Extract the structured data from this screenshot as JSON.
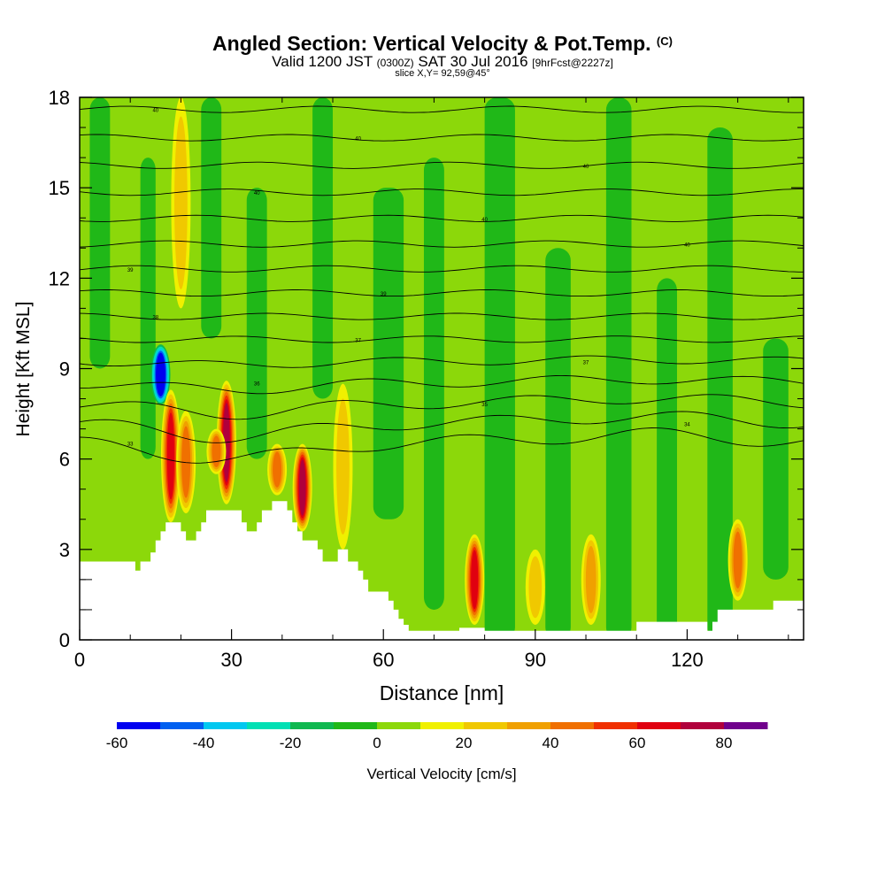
{
  "header": {
    "title_main": "Angled Section: Vertical Velocity & Pot.Temp.",
    "title_unit": "(C)",
    "valid_prefix": "Valid 1200 JST",
    "valid_utc": "(0300Z)",
    "valid_date": "SAT 30 Jul 2016",
    "valid_fcst": "[9hrFcst@2227z]",
    "slice": "slice X,Y= 92,59@45°"
  },
  "chart_data": {
    "type": "heatmap",
    "xlabel": "Distance [nm]",
    "ylabel": "Height [Kft MSL]",
    "xlim": [
      0,
      143
    ],
    "ylim": [
      0,
      18
    ],
    "xticks": [
      0,
      30,
      60,
      90,
      120
    ],
    "yticks": [
      0,
      3,
      6,
      9,
      12,
      15,
      18
    ],
    "colorbar": {
      "label": "Vertical Velocity [cm/s]",
      "ticks": [
        -60,
        -40,
        -20,
        0,
        20,
        40,
        60,
        80
      ],
      "bins": [
        -60,
        -50,
        -40,
        -30,
        -20,
        -10,
        0,
        10,
        20,
        30,
        40,
        50,
        60,
        70,
        80,
        90
      ],
      "colors": [
        "#0000f0",
        "#0060f0",
        "#00c8f0",
        "#00e0b4",
        "#10b850",
        "#20b818",
        "#8cd80a",
        "#f0f000",
        "#f0c800",
        "#f0a000",
        "#f07000",
        "#f03000",
        "#e00010",
        "#b0003c",
        "#70008c"
      ]
    },
    "terrain_top_kft": [
      [
        0,
        2.6
      ],
      [
        10,
        2.6
      ],
      [
        11,
        2.3
      ],
      [
        12,
        2.6
      ],
      [
        13,
        2.6
      ],
      [
        14,
        2.9
      ],
      [
        15,
        3.3
      ],
      [
        16,
        3.6
      ],
      [
        17,
        3.9
      ],
      [
        19,
        3.9
      ],
      [
        20,
        3.6
      ],
      [
        21,
        3.3
      ],
      [
        23,
        3.6
      ],
      [
        24,
        3.9
      ],
      [
        25,
        4.3
      ],
      [
        31,
        4.3
      ],
      [
        32,
        3.9
      ],
      [
        33,
        3.6
      ],
      [
        35,
        3.9
      ],
      [
        36,
        4.3
      ],
      [
        38,
        4.6
      ],
      [
        40,
        4.6
      ],
      [
        41,
        4.3
      ],
      [
        42,
        3.9
      ],
      [
        43,
        3.6
      ],
      [
        44,
        3.3
      ],
      [
        46,
        3.3
      ],
      [
        47,
        3.0
      ],
      [
        48,
        2.6
      ],
      [
        50,
        2.6
      ],
      [
        51,
        3.0
      ],
      [
        53,
        2.6
      ],
      [
        55,
        2.3
      ],
      [
        56,
        2.0
      ],
      [
        57,
        1.6
      ],
      [
        60,
        1.6
      ],
      [
        61,
        1.3
      ],
      [
        62,
        1.0
      ],
      [
        63,
        0.7
      ],
      [
        64,
        0.5
      ],
      [
        65,
        0.3
      ],
      [
        73,
        0.3
      ],
      [
        75,
        0.4
      ],
      [
        80,
        0.3
      ],
      [
        109,
        0.3
      ],
      [
        110,
        0.6
      ],
      [
        122,
        0.6
      ],
      [
        124,
        0.3
      ],
      [
        125,
        0.6
      ],
      [
        126,
        1.0
      ],
      [
        136,
        1.0
      ],
      [
        137,
        1.3
      ],
      [
        143,
        1.3
      ]
    ],
    "vertical_velocity_features": [
      {
        "x": 16,
        "z_bottom": 7.8,
        "z_top": 9.8,
        "w": -60
      },
      {
        "x": 18,
        "z_bottom": 3.9,
        "z_top": 8.3,
        "w": 60
      },
      {
        "x": 20,
        "z_bottom": 11.0,
        "z_top": 18.0,
        "w": 20
      },
      {
        "x": 21,
        "z_bottom": 4.2,
        "z_top": 7.6,
        "w": 40
      },
      {
        "x": 29,
        "z_bottom": 4.5,
        "z_top": 8.6,
        "w": 70
      },
      {
        "x": 27,
        "z_bottom": 5.5,
        "z_top": 7.0,
        "w": 40
      },
      {
        "x": 39,
        "z_bottom": 4.8,
        "z_top": 6.5,
        "w": 40
      },
      {
        "x": 44,
        "z_bottom": 3.6,
        "z_top": 6.5,
        "w": 70
      },
      {
        "x": 52,
        "z_bottom": 3.0,
        "z_top": 8.5,
        "w": 20
      },
      {
        "x": 78,
        "z_bottom": 0.5,
        "z_top": 3.5,
        "w": 60
      },
      {
        "x": 90,
        "z_bottom": 0.5,
        "z_top": 3.0,
        "w": 20
      },
      {
        "x": 101,
        "z_bottom": 0.5,
        "z_top": 3.5,
        "w": 30
      },
      {
        "x": 130,
        "z_bottom": 1.3,
        "z_top": 4.0,
        "w": 40
      }
    ],
    "isentrope_labels": [
      "40",
      "40",
      "40",
      "40",
      "40",
      "40",
      "39",
      "39",
      "38",
      "37",
      "37",
      "36",
      "35",
      "34",
      "33"
    ]
  }
}
